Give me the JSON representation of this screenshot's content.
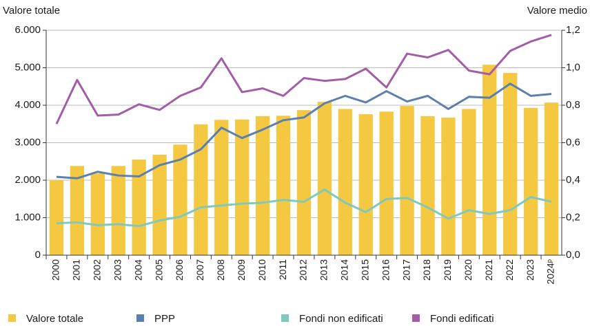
{
  "chart_data": {
    "type": "bar_line",
    "y_label": "Valore totale",
    "y2_label": "Valore medio",
    "categories": [
      "2000",
      "2001",
      "2002",
      "2003",
      "2004",
      "2005",
      "2006",
      "2007",
      "2008",
      "2009",
      "2010",
      "2011",
      "2012",
      "2013",
      "2014",
      "2015",
      "2016",
      "2017",
      "2018",
      "2019",
      "2020",
      "2021",
      "2022",
      "2023",
      "2024ᵖ"
    ],
    "series": [
      {
        "name": "Valore totale",
        "color": "#f5c842",
        "kind": "bar",
        "values": [
          2000,
          2380,
          2180,
          2380,
          2550,
          2680,
          2950,
          3490,
          3610,
          3620,
          3710,
          3720,
          3870,
          4090,
          3900,
          3760,
          3830,
          3980,
          3710,
          3670,
          3900,
          5080,
          4860,
          3930,
          4070
        ]
      },
      {
        "name": "PPP",
        "color": "#5b7fae",
        "kind": "line",
        "axis": "y2",
        "values": [
          0.418,
          0.41,
          0.445,
          0.425,
          0.42,
          0.48,
          0.51,
          0.565,
          0.68,
          0.625,
          0.67,
          0.72,
          0.735,
          0.81,
          0.85,
          0.815,
          0.875,
          0.82,
          0.85,
          0.78,
          0.845,
          0.84,
          0.915,
          0.85,
          0.86
        ]
      },
      {
        "name": "Fondi non edificati",
        "color": "#7ec9bd",
        "kind": "line",
        "axis": "y2",
        "values": [
          0.17,
          0.175,
          0.16,
          0.165,
          0.155,
          0.185,
          0.205,
          0.255,
          0.265,
          0.275,
          0.28,
          0.295,
          0.285,
          0.35,
          0.28,
          0.23,
          0.3,
          0.305,
          0.255,
          0.195,
          0.24,
          0.22,
          0.24,
          0.31,
          0.285
        ]
      },
      {
        "name": "Fondi edificati",
        "color": "#a35ca8",
        "kind": "line",
        "axis": "y2",
        "values": [
          0.7,
          0.935,
          0.745,
          0.75,
          0.805,
          0.775,
          0.85,
          0.895,
          1.05,
          0.87,
          0.89,
          0.85,
          0.945,
          0.93,
          0.94,
          0.995,
          0.895,
          1.075,
          1.055,
          1.095,
          0.985,
          0.965,
          1.09,
          1.14,
          1.175
        ]
      }
    ],
    "ylim": [
      0,
      6000
    ],
    "yticks": [
      0,
      {
        "value": 1000,
        "label": "1.000"
      },
      {
        "value": 2000,
        "label": "2.000"
      },
      {
        "value": 3000,
        "label": "3.000"
      },
      {
        "value": 4000,
        "label": "4.000"
      },
      {
        "value": 5000,
        "label": "5.000"
      },
      {
        "value": 6000,
        "label": "6.000"
      }
    ],
    "y2lim": [
      0,
      1.2
    ],
    "y2ticks": [
      {
        "value": 0,
        "label": "0,0"
      },
      {
        "value": 0.2,
        "label": "0,2"
      },
      {
        "value": 0.4,
        "label": "0,4"
      },
      {
        "value": 0.6,
        "label": "0,6"
      },
      {
        "value": 0.8,
        "label": "0,8"
      },
      {
        "value": 1.0,
        "label": "1,0"
      },
      {
        "value": 1.2,
        "label": "1,2"
      }
    ],
    "grid": true,
    "legend": "bottom"
  }
}
